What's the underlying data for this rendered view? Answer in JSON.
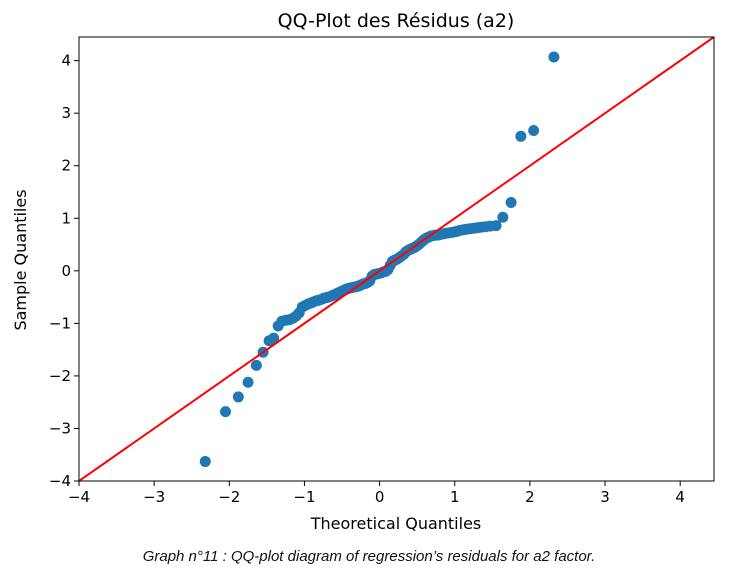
{
  "chart_data": {
    "type": "scatter",
    "title": "QQ-Plot des Résidus (a2)",
    "xlabel": "Theoretical Quantiles",
    "ylabel": "Sample Quantiles",
    "xlim": [
      -4,
      4.45
    ],
    "ylim": [
      -4,
      4.45
    ],
    "xticks": [
      -4,
      -3,
      -2,
      -1,
      0,
      1,
      2,
      3,
      4
    ],
    "yticks": [
      -4,
      -3,
      -2,
      -1,
      0,
      1,
      2,
      3,
      4
    ],
    "xtick_labels": [
      "−4",
      "−3",
      "−2",
      "−1",
      "0",
      "1",
      "2",
      "3",
      "4"
    ],
    "ytick_labels": [
      "−4",
      "−3",
      "−2",
      "−1",
      "0",
      "1",
      "2",
      "3",
      "4"
    ],
    "grid": false,
    "reference_line": {
      "type": "45-degree",
      "color": "#ff0000"
    },
    "marker_color": "#1f77b4",
    "series": [
      {
        "points": [
          [
            -2.32,
            -3.63
          ],
          [
            -2.05,
            -2.68
          ],
          [
            -1.88,
            -2.4
          ],
          [
            -1.75,
            -2.12
          ],
          [
            -1.64,
            -1.8
          ],
          [
            -1.55,
            -1.55
          ],
          [
            -1.47,
            -1.33
          ],
          [
            -1.41,
            -1.28
          ],
          [
            -1.35,
            -1.05
          ],
          [
            -1.3,
            -0.96
          ],
          [
            -1.25,
            -0.94
          ],
          [
            -1.2,
            -0.93
          ],
          [
            -1.15,
            -0.9
          ],
          [
            -1.11,
            -0.86
          ],
          [
            -1.07,
            -0.8
          ],
          [
            -1.03,
            -0.69
          ],
          [
            -0.99,
            -0.66
          ],
          [
            -0.95,
            -0.63
          ],
          [
            -0.91,
            -0.61
          ],
          [
            -0.88,
            -0.59
          ],
          [
            -0.84,
            -0.57
          ],
          [
            -0.81,
            -0.56
          ],
          [
            -0.77,
            -0.54
          ],
          [
            -0.74,
            -0.52
          ],
          [
            -0.71,
            -0.51
          ],
          [
            -0.68,
            -0.5
          ],
          [
            -0.64,
            -0.48
          ],
          [
            -0.61,
            -0.46
          ],
          [
            -0.58,
            -0.44
          ],
          [
            -0.55,
            -0.42
          ],
          [
            -0.52,
            -0.4
          ],
          [
            -0.49,
            -0.38
          ],
          [
            -0.46,
            -0.36
          ],
          [
            -0.43,
            -0.34
          ],
          [
            -0.4,
            -0.33
          ],
          [
            -0.37,
            -0.32
          ],
          [
            -0.34,
            -0.31
          ],
          [
            -0.31,
            -0.3
          ],
          [
            -0.28,
            -0.29
          ],
          [
            -0.25,
            -0.27
          ],
          [
            -0.22,
            -0.25
          ],
          [
            -0.19,
            -0.24
          ],
          [
            -0.16,
            -0.22
          ],
          [
            -0.13,
            -0.19
          ],
          [
            -0.1,
            -0.1
          ],
          [
            -0.07,
            -0.07
          ],
          [
            -0.04,
            -0.06
          ],
          [
            -0.01,
            -0.05
          ],
          [
            0.02,
            -0.04
          ],
          [
            0.05,
            -0.02
          ],
          [
            0.08,
            -0.01
          ],
          [
            0.11,
            0.02
          ],
          [
            0.14,
            0.1
          ],
          [
            0.17,
            0.18
          ],
          [
            0.2,
            0.2
          ],
          [
            0.23,
            0.22
          ],
          [
            0.26,
            0.25
          ],
          [
            0.29,
            0.28
          ],
          [
            0.32,
            0.31
          ],
          [
            0.35,
            0.36
          ],
          [
            0.38,
            0.39
          ],
          [
            0.41,
            0.41
          ],
          [
            0.44,
            0.43
          ],
          [
            0.47,
            0.45
          ],
          [
            0.5,
            0.48
          ],
          [
            0.53,
            0.51
          ],
          [
            0.56,
            0.55
          ],
          [
            0.59,
            0.59
          ],
          [
            0.62,
            0.62
          ],
          [
            0.65,
            0.64
          ],
          [
            0.68,
            0.66
          ],
          [
            0.71,
            0.67
          ],
          [
            0.74,
            0.68
          ],
          [
            0.77,
            0.68
          ],
          [
            0.8,
            0.69
          ],
          [
            0.84,
            0.7
          ],
          [
            0.87,
            0.71
          ],
          [
            0.91,
            0.72
          ],
          [
            0.95,
            0.73
          ],
          [
            0.99,
            0.74
          ],
          [
            1.03,
            0.75
          ],
          [
            1.07,
            0.77
          ],
          [
            1.11,
            0.78
          ],
          [
            1.15,
            0.79
          ],
          [
            1.2,
            0.8
          ],
          [
            1.25,
            0.81
          ],
          [
            1.3,
            0.82
          ],
          [
            1.35,
            0.83
          ],
          [
            1.41,
            0.84
          ],
          [
            1.47,
            0.85
          ],
          [
            1.55,
            0.86
          ],
          [
            1.64,
            1.02
          ],
          [
            1.75,
            1.3
          ],
          [
            1.88,
            2.56
          ],
          [
            2.05,
            2.67
          ],
          [
            2.32,
            4.07
          ]
        ]
      }
    ]
  },
  "caption": "Graph n°11 : QQ-plot diagram of regression’s residuals for a2 factor."
}
